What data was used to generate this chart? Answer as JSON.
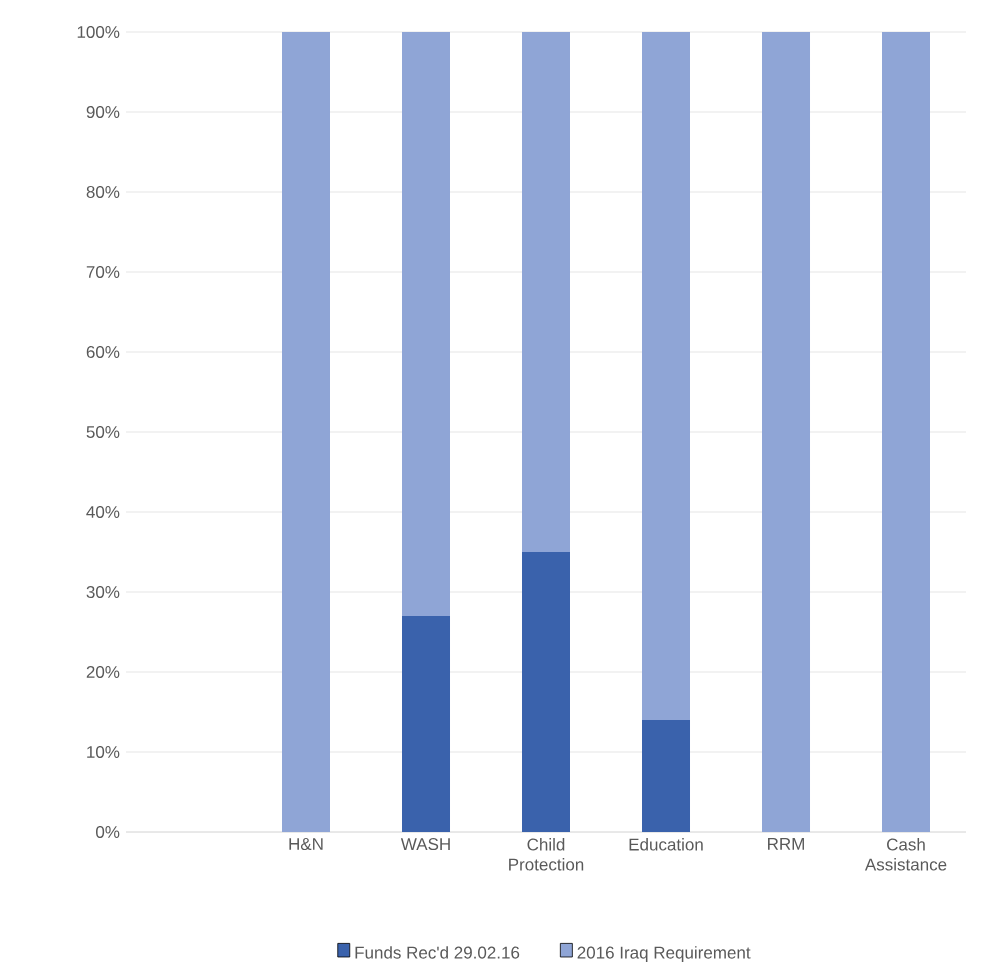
{
  "chart_data": {
    "type": "bar",
    "stacked": true,
    "categories": [
      null,
      "H&N",
      "WASH",
      "Child Protection",
      "Education",
      "RRM",
      "Cash Assistance"
    ],
    "series": [
      {
        "name": "Funds Rec'd 29.02.16",
        "color": "#3a62ac",
        "values": [
          null,
          0,
          27,
          35,
          14,
          0,
          0
        ]
      },
      {
        "name": "2016 Iraq Requirement",
        "color": "#8fa5d6",
        "values": [
          null,
          100,
          73,
          65,
          86,
          100,
          100
        ]
      }
    ],
    "ylim": [
      0,
      100
    ],
    "yticks": [
      {
        "value": 0,
        "label": "0%"
      },
      {
        "value": 10,
        "label": "10%"
      },
      {
        "value": 20,
        "label": "20%"
      },
      {
        "value": 30,
        "label": "30%"
      },
      {
        "value": 40,
        "label": "40%"
      },
      {
        "value": 50,
        "label": "50%"
      },
      {
        "value": 60,
        "label": "60%"
      },
      {
        "value": 70,
        "label": "70%"
      },
      {
        "value": 80,
        "label": "80%"
      },
      {
        "value": 90,
        "label": "90%"
      },
      {
        "value": 100,
        "label": "100%"
      }
    ],
    "grid": "y",
    "legend": "bottom"
  }
}
